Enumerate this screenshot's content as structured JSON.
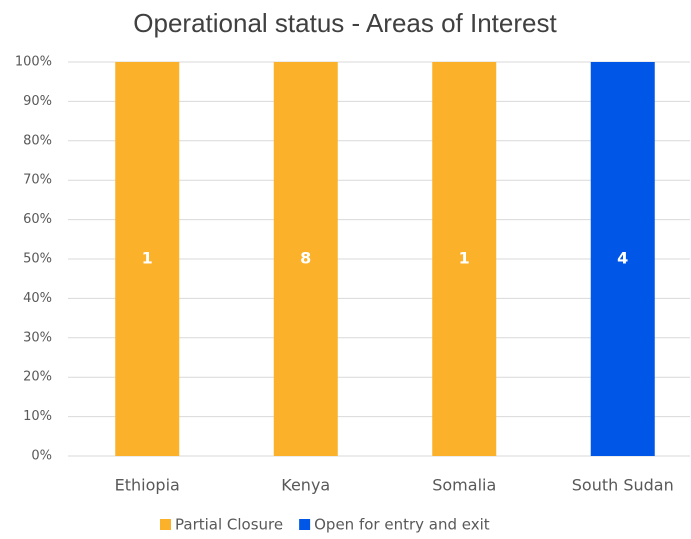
{
  "chart_data": {
    "type": "stacked_percent_bar",
    "title": "Operational status - Areas of Interest",
    "categories": [
      "Ethiopia",
      "Kenya",
      "Somalia",
      "South Sudan"
    ],
    "series": [
      {
        "name": "Partial Closure",
        "color": "#fbb12a",
        "values": [
          1,
          8,
          1,
          null
        ]
      },
      {
        "name": "Open for entry and exit",
        "color": "#0057e7",
        "values": [
          null,
          null,
          null,
          4
        ]
      }
    ],
    "ylim": [
      0,
      100
    ],
    "yticks": [
      {
        "value": 0,
        "label": "0%"
      },
      {
        "value": 10,
        "label": "10%"
      },
      {
        "value": 20,
        "label": "20%"
      },
      {
        "value": 30,
        "label": "30%"
      },
      {
        "value": 40,
        "label": "40%"
      },
      {
        "value": 50,
        "label": "50%"
      },
      {
        "value": 60,
        "label": "60%"
      },
      {
        "value": 70,
        "label": "70%"
      },
      {
        "value": 80,
        "label": "80%"
      },
      {
        "value": 90,
        "label": "90%"
      },
      {
        "value": 100,
        "label": "100%"
      }
    ],
    "grid": true,
    "legend": "bottom"
  }
}
